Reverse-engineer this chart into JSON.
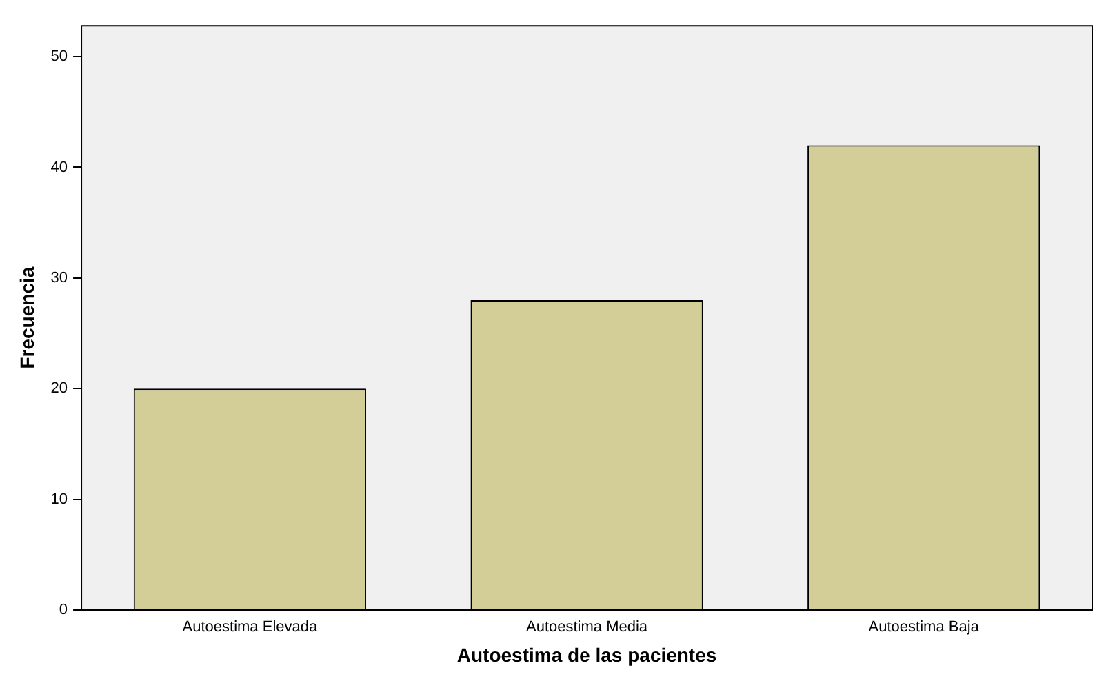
{
  "chart_data": {
    "type": "bar",
    "xlabel": "Autoestima de las pacientes",
    "ylabel": "Frecuencia",
    "categories": [
      "Autoestima Elevada",
      "Autoestima Media",
      "Autoestima Baja"
    ],
    "values": [
      20,
      28,
      42
    ],
    "color": "#d3ce97",
    "ylim": [
      0,
      52.8
    ],
    "yticks": [
      0,
      10,
      20,
      30,
      40,
      50
    ],
    "grid": false,
    "legend": false
  }
}
